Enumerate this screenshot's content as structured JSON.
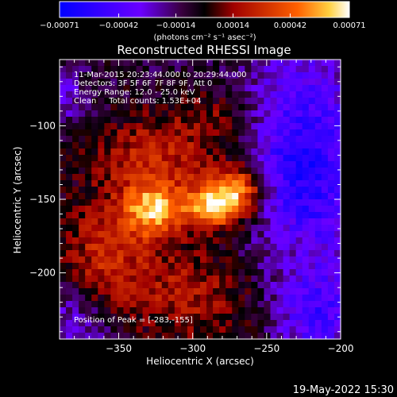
{
  "chart_data": {
    "type": "heatmap",
    "title": "Reconstructed RHESSI Image",
    "xlabel": "Heliocentric X (arcsec)",
    "ylabel": "Heliocentric Y (arcsec)",
    "xlim": [
      -390,
      -200
    ],
    "ylim": [
      -245,
      -55
    ],
    "x_ticks": [
      -350,
      -300,
      -250,
      -200
    ],
    "y_ticks": [
      -100,
      -150,
      -200
    ],
    "x_tick_labels": [
      "−350",
      "−300",
      "−250",
      "−200"
    ],
    "y_tick_labels": [
      "−100",
      "−150",
      "−200"
    ],
    "colorbar": {
      "range": [
        -0.00071,
        0.00071
      ],
      "ticks": [
        -0.00071,
        -0.00042,
        -0.00014,
        0.00014,
        0.00042,
        0.00071
      ],
      "tick_labels": [
        "−0.00071",
        "−0.00042",
        "−0.00014",
        "0.00014",
        "0.00042",
        "0.00071"
      ],
      "unit_label": "(photons cm⁻² s⁻¹ asec⁻²)",
      "colormap": [
        "#0000ff",
        "#6a00ff",
        "#3a0040",
        "#000000",
        "#a00000",
        "#ff6000",
        "#ffffff"
      ]
    },
    "annotations": {
      "time_range": "11-Mar-2015 20:23:44.000 to 20:29:44.000",
      "detectors": "Detectors: 3F 5F 6F 7F 8F 9F, Att 0",
      "energy_range": "Energy Range: 12.0 - 25.0 keV",
      "clean_counts": "Clean     Total counts: 1.53E+04",
      "peak_position": "Position of Peak = [-283,-155]"
    },
    "peak": {
      "x": -283,
      "y": -155
    },
    "sources": [
      {
        "x": -283,
        "y": -155,
        "sx": 16,
        "sy": 10,
        "amp": 1.0
      },
      {
        "x": -268,
        "y": -140,
        "sx": 14,
        "sy": 10,
        "amp": 0.7
      },
      {
        "x": -327,
        "y": -158,
        "sx": 14,
        "sy": 13,
        "amp": 0.82
      },
      {
        "x": -325,
        "y": -122,
        "sx": 30,
        "sy": 22,
        "amp": 0.45
      },
      {
        "x": -360,
        "y": -190,
        "sx": 22,
        "sy": 28,
        "amp": 0.45
      },
      {
        "x": -300,
        "y": -215,
        "sx": 34,
        "sy": 24,
        "amp": 0.38
      },
      {
        "x": -280,
        "y": -95,
        "sx": 20,
        "sy": 14,
        "amp": 0.25
      },
      {
        "x": -235,
        "y": -180,
        "sx": 16,
        "sy": 14,
        "amp": 0.18
      }
    ],
    "negative_regions": [
      {
        "x": -225,
        "y": -130,
        "sx": 28,
        "sy": 60,
        "amp": 0.7
      },
      {
        "x": -215,
        "y": -230,
        "sx": 18,
        "sy": 18,
        "amp": 0.4
      },
      {
        "x": -380,
        "y": -235,
        "sx": 22,
        "sy": 22,
        "amp": 0.35
      },
      {
        "x": -385,
        "y": -80,
        "sx": 10,
        "sy": 14,
        "amp": 0.25
      }
    ]
  },
  "footer": {
    "date": "19-May-2022 15:30"
  }
}
